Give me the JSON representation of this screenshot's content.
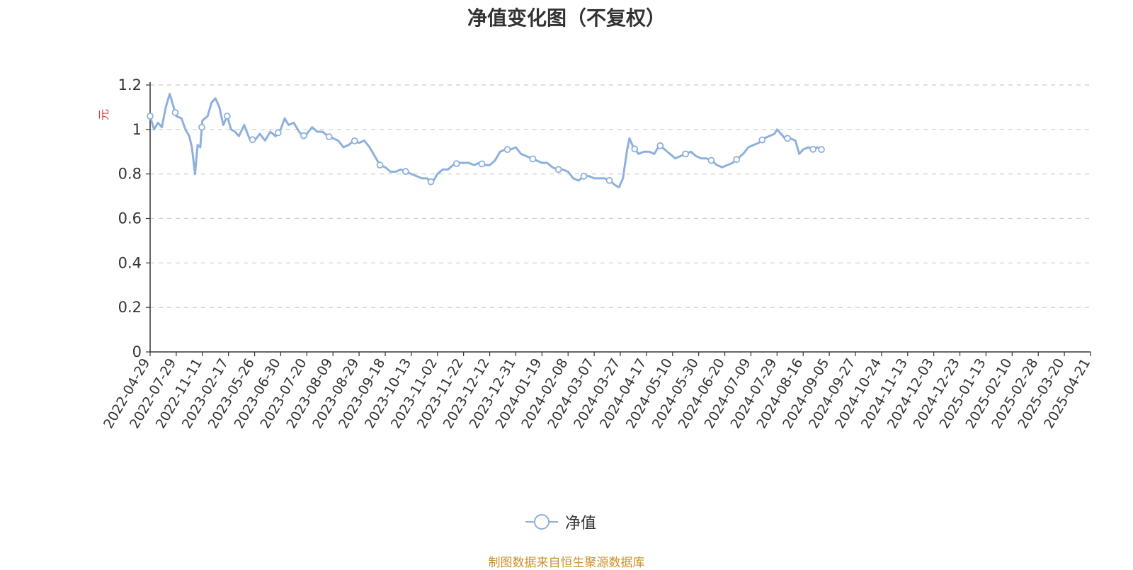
{
  "chart_title": "净值变化图（不复权）",
  "legend_label": "净值",
  "source_note": "制图数据来自恒生聚源数据库",
  "colors": {
    "line": "#8eb0dc",
    "axis": "#333333",
    "grid": "#cccccc",
    "ylabel": "#e53935",
    "source": "#c8922a"
  },
  "chart_data": {
    "type": "line",
    "title": "净值变化图（不复权）",
    "xlabel": "",
    "ylabel": "元",
    "ylim": [
      0,
      1.2
    ],
    "yticks": [
      "0",
      "0.2",
      "0.4",
      "0.6",
      "0.8",
      "1",
      "1.2"
    ],
    "grid": true,
    "legend_position": "bottom-center",
    "x_tick_labels": [
      "2022-04-29",
      "2022-07-29",
      "2022-11-11",
      "2023-02-17",
      "2023-05-26",
      "2023-06-30",
      "2023-07-20",
      "2023-08-09",
      "2023-08-29",
      "2023-09-18",
      "2023-10-13",
      "2023-11-02",
      "2023-11-22",
      "2023-12-12",
      "2023-12-31",
      "2024-01-19",
      "2024-02-08",
      "2024-03-07",
      "2024-03-27",
      "2024-04-17",
      "2024-05-10",
      "2024-05-30",
      "2024-06-20",
      "2024-07-09",
      "2024-07-29",
      "2024-08-16",
      "2024-09-05",
      "2024-09-27",
      "2024-10-24",
      "2024-11-13",
      "2024-12-03",
      "2024-12-23",
      "2025-01-13",
      "2025-02-10",
      "2025-02-28",
      "2025-03-20",
      "2025-04-21"
    ],
    "series": [
      {
        "name": "净值",
        "points": [
          [
            0,
            1.06
          ],
          [
            0.15,
            1.0
          ],
          [
            0.3,
            1.03
          ],
          [
            0.45,
            1.01
          ],
          [
            0.6,
            1.1
          ],
          [
            0.75,
            1.16
          ],
          [
            0.9,
            1.1
          ],
          [
            1.0,
            1.06
          ],
          [
            1.2,
            1.05
          ],
          [
            1.35,
            1.0
          ],
          [
            1.5,
            0.97
          ],
          [
            1.6,
            0.92
          ],
          [
            1.72,
            0.8
          ],
          [
            1.82,
            0.93
          ],
          [
            1.92,
            0.92
          ],
          [
            2.0,
            1.04
          ],
          [
            2.2,
            1.06
          ],
          [
            2.35,
            1.12
          ],
          [
            2.5,
            1.14
          ],
          [
            2.65,
            1.1
          ],
          [
            2.8,
            1.02
          ],
          [
            2.95,
            1.06
          ],
          [
            3.1,
            1.0
          ],
          [
            3.25,
            0.99
          ],
          [
            3.4,
            0.97
          ],
          [
            3.6,
            1.02
          ],
          [
            3.8,
            0.96
          ],
          [
            4.0,
            0.95
          ],
          [
            4.2,
            0.98
          ],
          [
            4.4,
            0.95
          ],
          [
            4.6,
            0.99
          ],
          [
            4.8,
            0.97
          ],
          [
            5.0,
            1.0
          ],
          [
            5.15,
            1.05
          ],
          [
            5.3,
            1.02
          ],
          [
            5.5,
            1.03
          ],
          [
            5.7,
            0.99
          ],
          [
            5.85,
            0.97
          ],
          [
            6.0,
            0.98
          ],
          [
            6.2,
            1.01
          ],
          [
            6.4,
            0.99
          ],
          [
            6.6,
            0.99
          ],
          [
            6.8,
            0.97
          ],
          [
            7.0,
            0.96
          ],
          [
            7.2,
            0.95
          ],
          [
            7.4,
            0.92
          ],
          [
            7.6,
            0.93
          ],
          [
            7.8,
            0.95
          ],
          [
            8.0,
            0.94
          ],
          [
            8.2,
            0.95
          ],
          [
            8.4,
            0.92
          ],
          [
            8.6,
            0.88
          ],
          [
            8.8,
            0.84
          ],
          [
            9.0,
            0.83
          ],
          [
            9.2,
            0.81
          ],
          [
            9.4,
            0.81
          ],
          [
            9.6,
            0.82
          ],
          [
            9.8,
            0.81
          ],
          [
            10.0,
            0.8
          ],
          [
            10.2,
            0.79
          ],
          [
            10.4,
            0.78
          ],
          [
            10.6,
            0.78
          ],
          [
            10.8,
            0.76
          ],
          [
            11.0,
            0.8
          ],
          [
            11.2,
            0.82
          ],
          [
            11.4,
            0.82
          ],
          [
            11.6,
            0.84
          ],
          [
            11.8,
            0.85
          ],
          [
            12.0,
            0.85
          ],
          [
            12.2,
            0.85
          ],
          [
            12.4,
            0.84
          ],
          [
            12.6,
            0.85
          ],
          [
            12.8,
            0.84
          ],
          [
            13.0,
            0.84
          ],
          [
            13.2,
            0.86
          ],
          [
            13.4,
            0.9
          ],
          [
            13.6,
            0.91
          ],
          [
            13.8,
            0.91
          ],
          [
            14.0,
            0.92
          ],
          [
            14.2,
            0.89
          ],
          [
            14.4,
            0.88
          ],
          [
            14.6,
            0.87
          ],
          [
            14.8,
            0.86
          ],
          [
            15.0,
            0.85
          ],
          [
            15.2,
            0.85
          ],
          [
            15.4,
            0.83
          ],
          [
            15.6,
            0.82
          ],
          [
            15.8,
            0.82
          ],
          [
            16.0,
            0.81
          ],
          [
            16.2,
            0.78
          ],
          [
            16.4,
            0.77
          ],
          [
            16.6,
            0.79
          ],
          [
            16.8,
            0.79
          ],
          [
            17.0,
            0.78
          ],
          [
            17.2,
            0.78
          ],
          [
            17.4,
            0.78
          ],
          [
            17.6,
            0.77
          ],
          [
            17.8,
            0.75
          ],
          [
            17.95,
            0.74
          ],
          [
            18.1,
            0.78
          ],
          [
            18.25,
            0.9
          ],
          [
            18.35,
            0.96
          ],
          [
            18.5,
            0.92
          ],
          [
            18.7,
            0.89
          ],
          [
            18.9,
            0.9
          ],
          [
            19.1,
            0.9
          ],
          [
            19.3,
            0.89
          ],
          [
            19.5,
            0.93
          ],
          [
            19.7,
            0.91
          ],
          [
            19.9,
            0.89
          ],
          [
            20.1,
            0.87
          ],
          [
            20.3,
            0.88
          ],
          [
            20.5,
            0.89
          ],
          [
            20.7,
            0.9
          ],
          [
            20.9,
            0.88
          ],
          [
            21.1,
            0.87
          ],
          [
            21.3,
            0.87
          ],
          [
            21.5,
            0.86
          ],
          [
            21.7,
            0.84
          ],
          [
            21.9,
            0.83
          ],
          [
            22.1,
            0.84
          ],
          [
            22.3,
            0.85
          ],
          [
            22.5,
            0.87
          ],
          [
            22.7,
            0.89
          ],
          [
            22.9,
            0.92
          ],
          [
            23.1,
            0.93
          ],
          [
            23.3,
            0.94
          ],
          [
            23.5,
            0.96
          ],
          [
            23.7,
            0.97
          ],
          [
            23.9,
            0.98
          ],
          [
            24.0,
            1.0
          ],
          [
            24.15,
            0.98
          ],
          [
            24.3,
            0.96
          ],
          [
            24.5,
            0.96
          ],
          [
            24.7,
            0.95
          ],
          [
            24.85,
            0.89
          ],
          [
            25.0,
            0.91
          ],
          [
            25.2,
            0.92
          ],
          [
            25.4,
            0.91
          ],
          [
            25.55,
            0.92
          ],
          [
            25.7,
            0.91
          ]
        ],
        "marker_points": [
          0,
          0.96,
          1.98,
          2.95,
          3.92,
          4.9,
          5.88,
          6.85,
          7.83,
          8.8,
          9.78,
          10.75,
          11.73,
          12.7,
          13.68,
          14.65,
          15.63,
          16.6,
          17.58,
          18.55,
          19.53,
          20.5,
          21.48,
          22.45,
          23.43,
          24.4,
          25.38,
          25.7
        ]
      }
    ]
  }
}
